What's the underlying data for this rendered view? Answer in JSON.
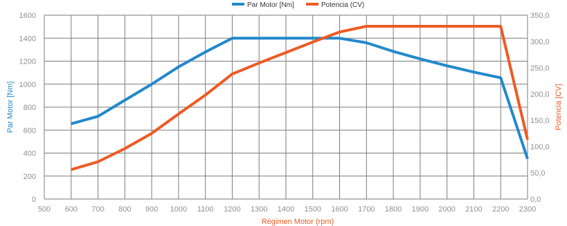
{
  "chart_data": {
    "type": "line",
    "title": "",
    "xlabel": "Régimen Motor (rpm)",
    "ylabel": "Par Motor [Nm]",
    "ylabel_right": "Potencia [CV]",
    "x": [
      600,
      700,
      800,
      900,
      1000,
      1100,
      1200,
      1300,
      1400,
      1500,
      1600,
      1700,
      1800,
      1900,
      2000,
      2100,
      2200,
      2300
    ],
    "xlim": [
      500,
      2300
    ],
    "x_ticks": [
      "500",
      "600",
      "700",
      "800",
      "900",
      "1000",
      "1100",
      "1200",
      "1300",
      "1400",
      "1500",
      "1600",
      "1700",
      "1800",
      "1900",
      "2000",
      "2100",
      "2200",
      "2300"
    ],
    "ylim_left": [
      0,
      1600
    ],
    "y_ticks_left": [
      "0",
      "200",
      "400",
      "600",
      "800",
      "1000",
      "1200",
      "1400",
      "1600"
    ],
    "ylim_right": [
      0,
      350
    ],
    "y_ticks_right": [
      "0,0",
      "50,0",
      "100,0",
      "150,0",
      "200,0",
      "250,0",
      "300,0",
      "350,0"
    ],
    "grid": true,
    "legend_position": "top-center",
    "series": [
      {
        "name": "Par Motor [Nm]",
        "axis": "left",
        "color": "#2288cc",
        "values": [
          655,
          720,
          860,
          1000,
          1150,
          1280,
          1400,
          1400,
          1400,
          1400,
          1400,
          1360,
          1285,
          1220,
          1160,
          1105,
          1055,
          350
        ]
      },
      {
        "name": "Potencia (CV)",
        "axis": "right",
        "color": "#ee5a24",
        "values": [
          56,
          71,
          96,
          125,
          162,
          198,
          238,
          259,
          279,
          299,
          318,
          329,
          329,
          329,
          329,
          329,
          329,
          113
        ]
      }
    ]
  }
}
